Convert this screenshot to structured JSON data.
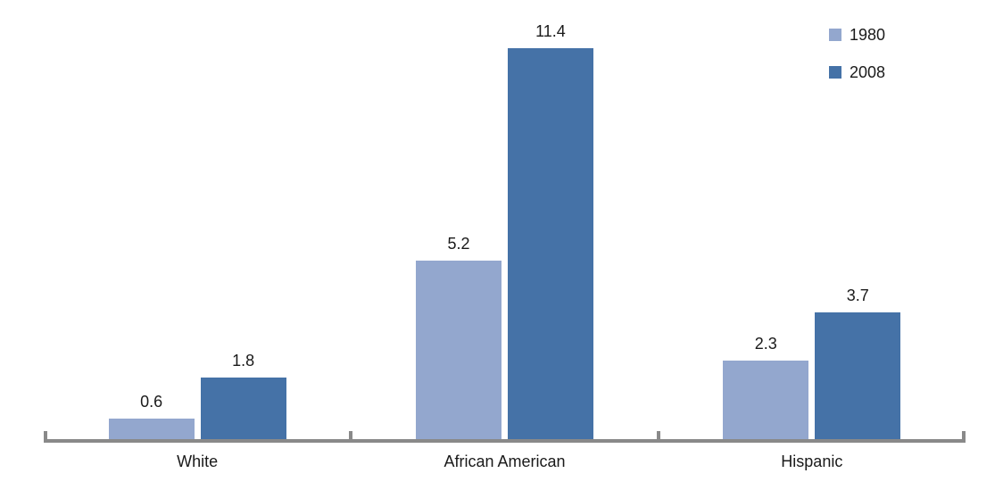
{
  "chart_data": {
    "type": "bar",
    "title": "",
    "xlabel": "",
    "ylabel": "",
    "categories": [
      "White",
      "African American",
      "Hispanic"
    ],
    "series": [
      {
        "name": "1980",
        "color": "#93a7ce",
        "values": [
          0.6,
          5.2,
          2.3
        ]
      },
      {
        "name": "2008",
        "color": "#4572a7",
        "values": [
          1.8,
          11.4,
          3.7
        ]
      }
    ],
    "value_labels": [
      "0.6",
      "1.8",
      "5.2",
      "11.4",
      "2.3",
      "3.7"
    ],
    "ylim": [
      0,
      12.8
    ],
    "grid": false,
    "y_axis_visible": false,
    "legend_position": "top-right",
    "axis_color": "#898989",
    "text_color": "#1a1a1a"
  }
}
